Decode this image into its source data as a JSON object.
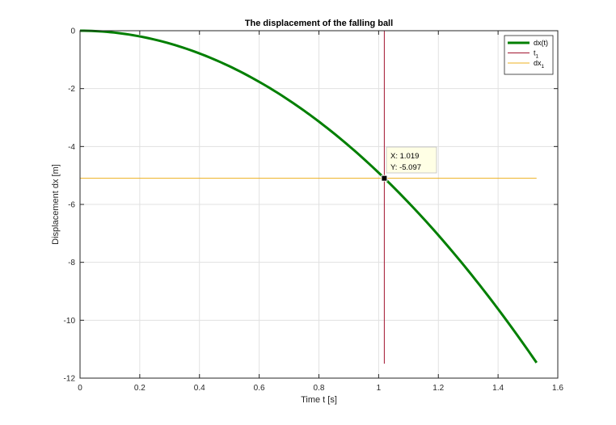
{
  "chart_data": {
    "type": "line",
    "title": "The displacement of the falling ball",
    "xlabel": "Time t [s]",
    "ylabel": "Displacement dx [m]",
    "xlim": [
      0,
      1.6
    ],
    "ylim": [
      -12,
      0
    ],
    "x_ticks": [
      0,
      0.2,
      0.4,
      0.6,
      0.8,
      1,
      1.2,
      1.4,
      1.6
    ],
    "x_tick_labels": [
      "0",
      "0.2",
      "0.4",
      "0.6",
      "0.8",
      "1",
      "1.2",
      "1.4",
      "1.6"
    ],
    "y_ticks": [
      0,
      -2,
      -4,
      -6,
      -8,
      -10,
      -12
    ],
    "y_tick_labels": [
      "0",
      "-2",
      "-4",
      "-6",
      "-8",
      "-10",
      "-12"
    ],
    "grid": true,
    "legend_position": "top-right",
    "series": [
      {
        "name": "dx(t)",
        "color": "#007f00",
        "x": [
          0,
          0.1,
          0.2,
          0.3,
          0.4,
          0.5,
          0.6,
          0.7,
          0.8,
          0.9,
          1.0,
          1.019,
          1.1,
          1.2,
          1.3,
          1.4,
          1.5,
          1.529
        ],
        "y": [
          0,
          -0.049,
          -0.196,
          -0.441,
          -0.785,
          -1.226,
          -1.766,
          -2.404,
          -3.139,
          -3.973,
          -4.905,
          -5.097,
          -5.935,
          -7.063,
          -8.289,
          -9.614,
          -11.036,
          -11.467
        ]
      },
      {
        "name": "t1",
        "color": "#a2142f",
        "x": [
          1.019,
          1.019
        ],
        "y": [
          0,
          -11.5
        ]
      },
      {
        "name": "dx1",
        "color": "#edb120",
        "x": [
          0,
          1.529
        ],
        "y": [
          -5.097,
          -5.097
        ]
      }
    ],
    "legend": [
      {
        "label": "dx(t)",
        "sub": ""
      },
      {
        "label": "t",
        "sub": "1"
      },
      {
        "label": "dx",
        "sub": "1"
      }
    ],
    "datatip": {
      "x": 1.019,
      "y": -5.097,
      "x_text": "X: 1.019",
      "y_text": "Y: -5.097"
    }
  }
}
